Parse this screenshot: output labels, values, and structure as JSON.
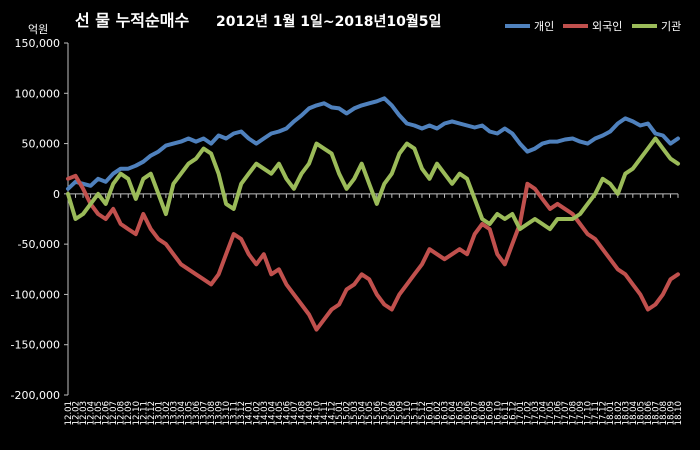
{
  "chart_data": {
    "type": "line",
    "title": "선 물 누적순매수",
    "subtitle": "2012년 1월 1일~2018년10월5일",
    "unit_label": "억원",
    "ylim": [
      -200000,
      150000
    ],
    "yticks": [
      150000,
      100000,
      50000,
      0,
      -50000,
      -100000,
      -150000,
      -200000
    ],
    "ytick_labels": [
      "150,000",
      "100,000",
      "50,000",
      "0",
      "-50,000",
      "-100,000",
      "-150,000",
      "-200,000"
    ],
    "grid": false,
    "legend_position": "top-right",
    "x_labels": [
      "12.01",
      "12.02",
      "12.03",
      "12.04",
      "12.05",
      "12.06",
      "12.07",
      "12.08",
      "12.09",
      "12.10",
      "12.11",
      "12.12",
      "13.01",
      "13.02",
      "13.03",
      "13.04",
      "13.05",
      "13.06",
      "13.07",
      "13.08",
      "13.09",
      "13.10",
      "13.11",
      "13.12",
      "14.01",
      "14.02",
      "14.03",
      "14.04",
      "14.05",
      "14.06",
      "14.07",
      "14.08",
      "14.09",
      "14.10",
      "14.11",
      "14.12",
      "15.01",
      "15.02",
      "15.03",
      "15.04",
      "15.05",
      "15.06",
      "15.07",
      "15.08",
      "15.09",
      "15.10",
      "15.11",
      "15.12",
      "16.01",
      "16.02",
      "16.03",
      "16.04",
      "16.05",
      "16.06",
      "16.07",
      "16.08",
      "16.09",
      "16.10",
      "16.11",
      "16.12",
      "17.01",
      "17.02",
      "17.03",
      "17.04",
      "17.05",
      "17.06",
      "17.07",
      "17.08",
      "17.09",
      "17.10",
      "17.11",
      "17.12",
      "18.01",
      "18.02",
      "18.03",
      "18.04",
      "18.05",
      "18.06",
      "18.07",
      "18.08",
      "18.09",
      "18.10"
    ],
    "series": [
      {
        "name": "개인",
        "color": "#4f81bd",
        "values": [
          5000,
          12000,
          10000,
          8000,
          15000,
          12000,
          20000,
          25000,
          25000,
          28000,
          32000,
          38000,
          42000,
          48000,
          50000,
          52000,
          55000,
          52000,
          55000,
          50000,
          58000,
          55000,
          60000,
          62000,
          55000,
          50000,
          55000,
          60000,
          62000,
          65000,
          72000,
          78000,
          85000,
          88000,
          90000,
          86000,
          85000,
          80000,
          85000,
          88000,
          90000,
          92000,
          95000,
          88000,
          78000,
          70000,
          68000,
          65000,
          68000,
          65000,
          70000,
          72000,
          70000,
          68000,
          66000,
          68000,
          62000,
          60000,
          65000,
          60000,
          50000,
          42000,
          45000,
          50000,
          52000,
          52000,
          54000,
          55000,
          52000,
          50000,
          55000,
          58000,
          62000,
          70000,
          75000,
          72000,
          68000,
          70000,
          60000,
          58000,
          50000,
          55000
        ]
      },
      {
        "name": "외국인",
        "color": "#c0504d",
        "values": [
          15000,
          18000,
          5000,
          -10000,
          -20000,
          -25000,
          -15000,
          -30000,
          -35000,
          -40000,
          -20000,
          -35000,
          -45000,
          -50000,
          -60000,
          -70000,
          -75000,
          -80000,
          -85000,
          -90000,
          -80000,
          -60000,
          -40000,
          -45000,
          -60000,
          -70000,
          -60000,
          -80000,
          -75000,
          -90000,
          -100000,
          -110000,
          -120000,
          -135000,
          -125000,
          -115000,
          -110000,
          -95000,
          -90000,
          -80000,
          -85000,
          -100000,
          -110000,
          -115000,
          -100000,
          -90000,
          -80000,
          -70000,
          -55000,
          -60000,
          -65000,
          -60000,
          -55000,
          -60000,
          -40000,
          -30000,
          -35000,
          -60000,
          -70000,
          -50000,
          -30000,
          10000,
          5000,
          -5000,
          -15000,
          -10000,
          -15000,
          -20000,
          -30000,
          -40000,
          -45000,
          -55000,
          -65000,
          -75000,
          -80000,
          -90000,
          -100000,
          -115000,
          -110000,
          -100000,
          -85000,
          -80000
        ]
      },
      {
        "name": "기관",
        "color": "#9bbb59",
        "values": [
          0,
          -25000,
          -20000,
          -10000,
          0,
          -10000,
          10000,
          20000,
          15000,
          -5000,
          15000,
          20000,
          0,
          -20000,
          10000,
          20000,
          30000,
          35000,
          45000,
          40000,
          20000,
          -10000,
          -15000,
          10000,
          20000,
          30000,
          25000,
          20000,
          30000,
          15000,
          5000,
          20000,
          30000,
          50000,
          45000,
          40000,
          20000,
          5000,
          15000,
          30000,
          10000,
          -10000,
          10000,
          20000,
          40000,
          50000,
          45000,
          25000,
          15000,
          30000,
          20000,
          10000,
          20000,
          15000,
          -5000,
          -25000,
          -30000,
          -20000,
          -25000,
          -20000,
          -35000,
          -30000,
          -25000,
          -30000,
          -35000,
          -25000,
          -25000,
          -25000,
          -20000,
          -10000,
          0,
          15000,
          10000,
          0,
          20000,
          25000,
          35000,
          45000,
          55000,
          45000,
          35000,
          30000
        ]
      }
    ]
  }
}
